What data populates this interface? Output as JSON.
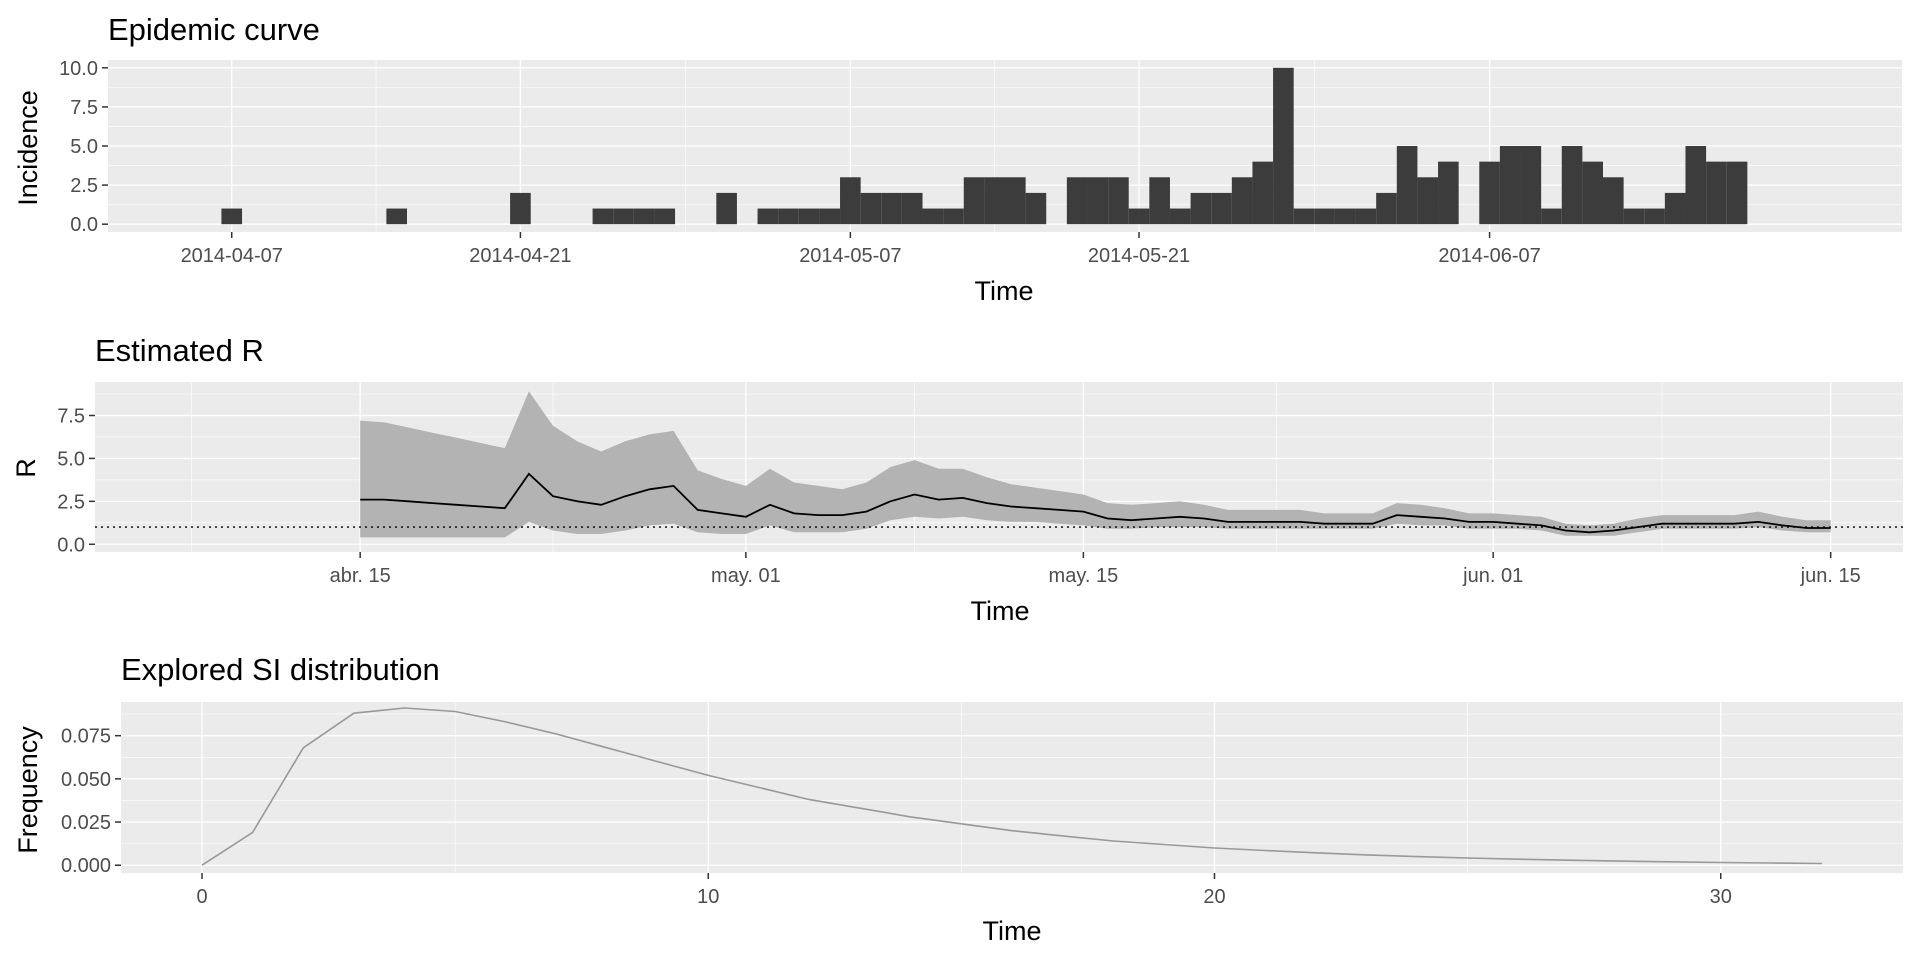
{
  "chart_data": [
    {
      "type": "bar",
      "title": "Epidemic curve",
      "xlabel": "Time",
      "ylabel": "Incidence",
      "xlim": [
        "2014-04-01",
        "2014-06-27"
      ],
      "ylim": [
        -0.5,
        10.5
      ],
      "grid": true,
      "x_ticks": [
        "2014-04-07",
        "2014-04-21",
        "2014-05-07",
        "2014-05-21",
        "2014-06-07"
      ],
      "y_ticks": [
        "0.0",
        "2.5",
        "5.0",
        "7.5",
        "10.0"
      ],
      "bar_color": "#333333",
      "dates": [
        "2014-04-07",
        "2014-04-15",
        "2014-04-21",
        "2014-04-25",
        "2014-04-26",
        "2014-04-27",
        "2014-04-28",
        "2014-05-01",
        "2014-05-03",
        "2014-05-04",
        "2014-05-05",
        "2014-05-06",
        "2014-05-07",
        "2014-05-08",
        "2014-05-09",
        "2014-05-10",
        "2014-05-11",
        "2014-05-12",
        "2014-05-13",
        "2014-05-14",
        "2014-05-15",
        "2014-05-16",
        "2014-05-18",
        "2014-05-19",
        "2014-05-20",
        "2014-05-21",
        "2014-05-22",
        "2014-05-23",
        "2014-05-24",
        "2014-05-25",
        "2014-05-26",
        "2014-05-27",
        "2014-05-28",
        "2014-05-29",
        "2014-05-30",
        "2014-05-31",
        "2014-06-01",
        "2014-06-02",
        "2014-06-03",
        "2014-06-04",
        "2014-06-05",
        "2014-06-07",
        "2014-06-08",
        "2014-06-09",
        "2014-06-10",
        "2014-06-11",
        "2014-06-12",
        "2014-06-13",
        "2014-06-14",
        "2014-06-15",
        "2014-06-16",
        "2014-06-17",
        "2014-06-18",
        "2014-06-19"
      ],
      "values": [
        1,
        1,
        2,
        1,
        1,
        1,
        1,
        2,
        1,
        1,
        1,
        1,
        3,
        2,
        2,
        2,
        1,
        1,
        3,
        3,
        3,
        2,
        3,
        3,
        3,
        1,
        3,
        1,
        2,
        2,
        3,
        4,
        10,
        1,
        1,
        1,
        1,
        2,
        5,
        3,
        4,
        4,
        5,
        5,
        1,
        5,
        4,
        3,
        1,
        1,
        2,
        5,
        4,
        4
      ]
    },
    {
      "type": "line",
      "title": "Estimated R",
      "xlabel": "Time",
      "ylabel": "R",
      "xlim": [
        "2014-04-04",
        "2014-06-18"
      ],
      "ylim": [
        -0.45,
        9.45
      ],
      "grid": true,
      "x_ticks": [
        "abr. 15",
        "may. 01",
        "may. 15",
        "jun. 01",
        "jun. 15"
      ],
      "y_ticks": [
        "0.0",
        "2.5",
        "5.0",
        "7.5"
      ],
      "reference_line": 1,
      "band_color": "#b3b3b3",
      "line_color": "#000000",
      "dates": [
        "2014-04-15",
        "2014-04-16",
        "2014-04-17",
        "2014-04-18",
        "2014-04-19",
        "2014-04-20",
        "2014-04-21",
        "2014-04-22",
        "2014-04-23",
        "2014-04-24",
        "2014-04-25",
        "2014-04-26",
        "2014-04-27",
        "2014-04-28",
        "2014-04-29",
        "2014-04-30",
        "2014-05-01",
        "2014-05-02",
        "2014-05-03",
        "2014-05-04",
        "2014-05-05",
        "2014-05-06",
        "2014-05-07",
        "2014-05-08",
        "2014-05-09",
        "2014-05-10",
        "2014-05-11",
        "2014-05-12",
        "2014-05-13",
        "2014-05-14",
        "2014-05-15",
        "2014-05-16",
        "2014-05-17",
        "2014-05-18",
        "2014-05-19",
        "2014-05-20",
        "2014-05-21",
        "2014-05-22",
        "2014-05-23",
        "2014-05-24",
        "2014-05-25",
        "2014-05-26",
        "2014-05-27",
        "2014-05-28",
        "2014-05-29",
        "2014-05-30",
        "2014-05-31",
        "2014-06-01",
        "2014-06-02",
        "2014-06-03",
        "2014-06-04",
        "2014-06-05",
        "2014-06-06",
        "2014-06-07",
        "2014-06-08",
        "2014-06-09",
        "2014-06-10",
        "2014-06-11",
        "2014-06-12",
        "2014-06-13",
        "2014-06-14",
        "2014-06-15"
      ],
      "mean": [
        2.6,
        2.6,
        2.5,
        2.4,
        2.3,
        2.2,
        2.1,
        4.1,
        2.8,
        2.5,
        2.3,
        2.8,
        3.2,
        3.4,
        2.0,
        1.8,
        1.6,
        2.3,
        1.8,
        1.7,
        1.7,
        1.9,
        2.5,
        2.9,
        2.6,
        2.7,
        2.4,
        2.2,
        2.1,
        2.0,
        1.9,
        1.5,
        1.4,
        1.5,
        1.6,
        1.5,
        1.3,
        1.3,
        1.3,
        1.3,
        1.2,
        1.2,
        1.2,
        1.7,
        1.6,
        1.5,
        1.3,
        1.3,
        1.2,
        1.1,
        0.8,
        0.7,
        0.8,
        1.0,
        1.2,
        1.2,
        1.2,
        1.2,
        1.3,
        1.1,
        0.95,
        0.95
      ],
      "lower": [
        0.4,
        0.4,
        0.4,
        0.4,
        0.4,
        0.4,
        0.4,
        1.3,
        0.8,
        0.6,
        0.6,
        0.8,
        1.1,
        1.2,
        0.7,
        0.6,
        0.6,
        1.1,
        0.7,
        0.7,
        0.7,
        0.9,
        1.4,
        1.6,
        1.5,
        1.6,
        1.4,
        1.3,
        1.3,
        1.2,
        1.1,
        0.9,
        0.9,
        1.0,
        1.0,
        1.0,
        0.9,
        0.9,
        0.9,
        0.9,
        0.9,
        0.9,
        0.9,
        1.2,
        1.1,
        1.1,
        0.9,
        0.9,
        0.9,
        0.8,
        0.5,
        0.5,
        0.5,
        0.7,
        0.9,
        0.9,
        0.9,
        0.9,
        1.0,
        0.8,
        0.7,
        0.7
      ],
      "upper": [
        7.2,
        7.1,
        6.8,
        6.5,
        6.2,
        5.9,
        5.6,
        8.9,
        6.9,
        6.0,
        5.4,
        6.0,
        6.4,
        6.6,
        4.3,
        3.8,
        3.4,
        4.4,
        3.6,
        3.4,
        3.2,
        3.6,
        4.5,
        4.9,
        4.4,
        4.4,
        3.9,
        3.5,
        3.3,
        3.1,
        2.9,
        2.4,
        2.3,
        2.4,
        2.5,
        2.3,
        2.0,
        2.0,
        2.0,
        2.0,
        1.8,
        1.8,
        1.8,
        2.4,
        2.3,
        2.1,
        1.8,
        1.8,
        1.7,
        1.6,
        1.2,
        1.1,
        1.2,
        1.5,
        1.7,
        1.7,
        1.7,
        1.7,
        1.9,
        1.6,
        1.4,
        1.4
      ]
    },
    {
      "type": "line",
      "title": "Explored SI distribution",
      "xlabel": "Time",
      "ylabel": "Frequency",
      "xlim": [
        -1.6,
        33.6
      ],
      "ylim": [
        -0.0045,
        0.0945
      ],
      "grid": true,
      "x_ticks": [
        0,
        10,
        20,
        30
      ],
      "y_ticks": [
        "0.000",
        "0.025",
        "0.050",
        "0.075"
      ],
      "line_color": "#999999",
      "x": [
        0,
        1,
        2,
        3,
        4,
        5,
        6,
        7,
        8,
        9,
        10,
        11,
        12,
        13,
        14,
        15,
        16,
        17,
        18,
        19,
        20,
        21,
        22,
        23,
        24,
        25,
        26,
        27,
        28,
        29,
        30,
        31,
        32
      ],
      "y": [
        0.0,
        0.019,
        0.068,
        0.088,
        0.091,
        0.089,
        0.083,
        0.076,
        0.068,
        0.06,
        0.052,
        0.045,
        0.038,
        0.033,
        0.028,
        0.024,
        0.02,
        0.017,
        0.014,
        0.012,
        0.01,
        0.0085,
        0.0072,
        0.006,
        0.005,
        0.0042,
        0.0035,
        0.0029,
        0.0024,
        0.002,
        0.0016,
        0.0013,
        0.001
      ]
    }
  ]
}
